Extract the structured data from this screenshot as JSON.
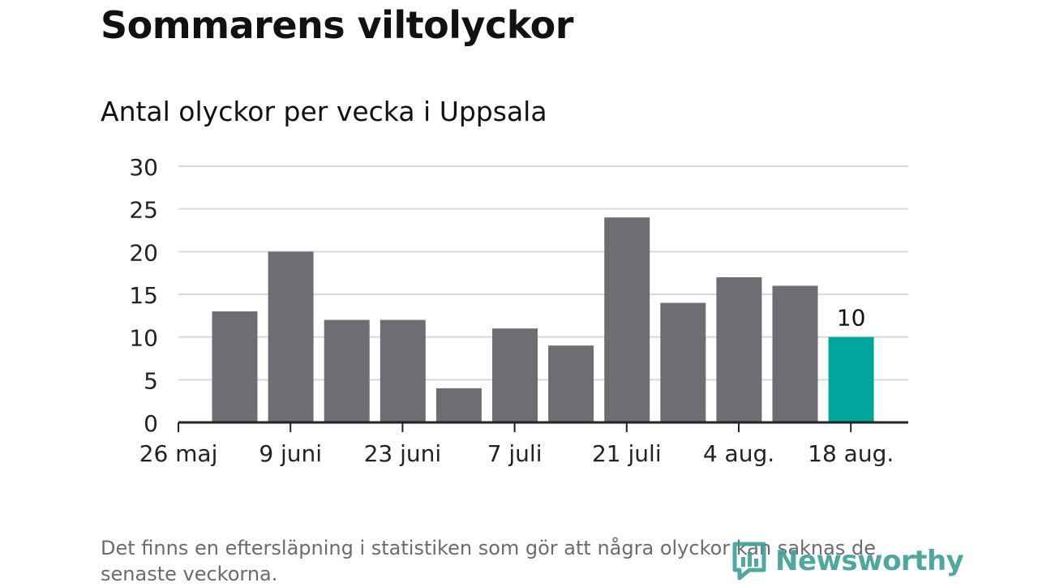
{
  "title": "Sommarens viltolyckor",
  "subtitle": "Antal olyckor per vecka i Uppsala",
  "footnote": "Det finns en eftersläpning i statistiken som gör att några olyckor kan saknas de senaste veckorna.",
  "logo": {
    "text": "Newsworthy",
    "icon": "newsworthy-logo-icon"
  },
  "colors": {
    "bar": "#6e6d73",
    "highlight": "#00a59b",
    "grid": "#d9d9d9",
    "axis": "#222222"
  },
  "chart_data": {
    "type": "bar",
    "values": [
      13,
      20,
      12,
      12,
      4,
      11,
      9,
      24,
      14,
      17,
      16,
      10
    ],
    "highlight_index": 11,
    "data_labels": [
      {
        "index": 11,
        "text": "10"
      }
    ],
    "x_tick_labels": [
      "26 maj",
      "9 juni",
      "23 juni",
      "7 juli",
      "21 juli",
      "4 aug.",
      "18 aug."
    ],
    "y_ticks": [
      0,
      5,
      10,
      15,
      20,
      25,
      30
    ],
    "ylim": [
      0,
      30
    ],
    "grid": true,
    "legend": false
  }
}
